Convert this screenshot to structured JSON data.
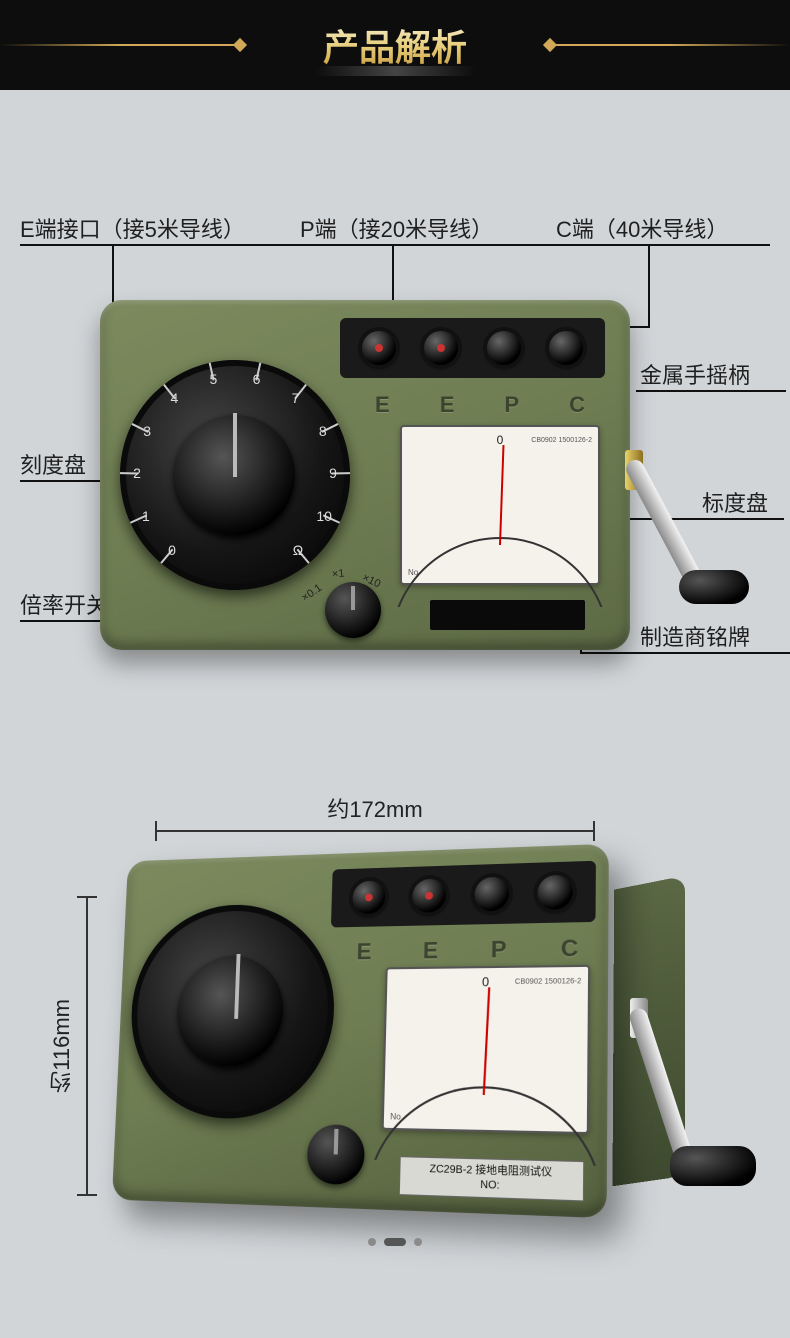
{
  "header": {
    "title": "产品解析"
  },
  "callouts": {
    "e_port": "E端接口（接5米导线）",
    "p_port": "P端（接20米导线）",
    "c_port": "C端（40米导线）",
    "crank": "金属手摇柄",
    "dial": "刻度盘",
    "gauge": "标度盘",
    "mult": "倍率开关",
    "nameplate": "制造商铭牌"
  },
  "port_letters": [
    "E",
    "E",
    "P",
    "C"
  ],
  "dial_numbers": [
    "0",
    "1",
    "2",
    "3",
    "4",
    "5",
    "6",
    "7",
    "8",
    "9",
    "10",
    "Ω"
  ],
  "multiplier_labels": {
    "x01": "×0.1",
    "x1": "×1",
    "x10": "×10"
  },
  "meter": {
    "zero": "0",
    "model": "CB0902 1500126-2",
    "no_label": "No."
  },
  "dimensions": {
    "width": "约172mm",
    "height": "约116mm"
  },
  "nameplate_text": {
    "line1": "ZC29B-2 接地电阻测试仪",
    "line2": "NO:"
  },
  "colors": {
    "body": "#6e7d52",
    "gold1": "#e8cf7f",
    "bg": "#d1d5d8"
  }
}
